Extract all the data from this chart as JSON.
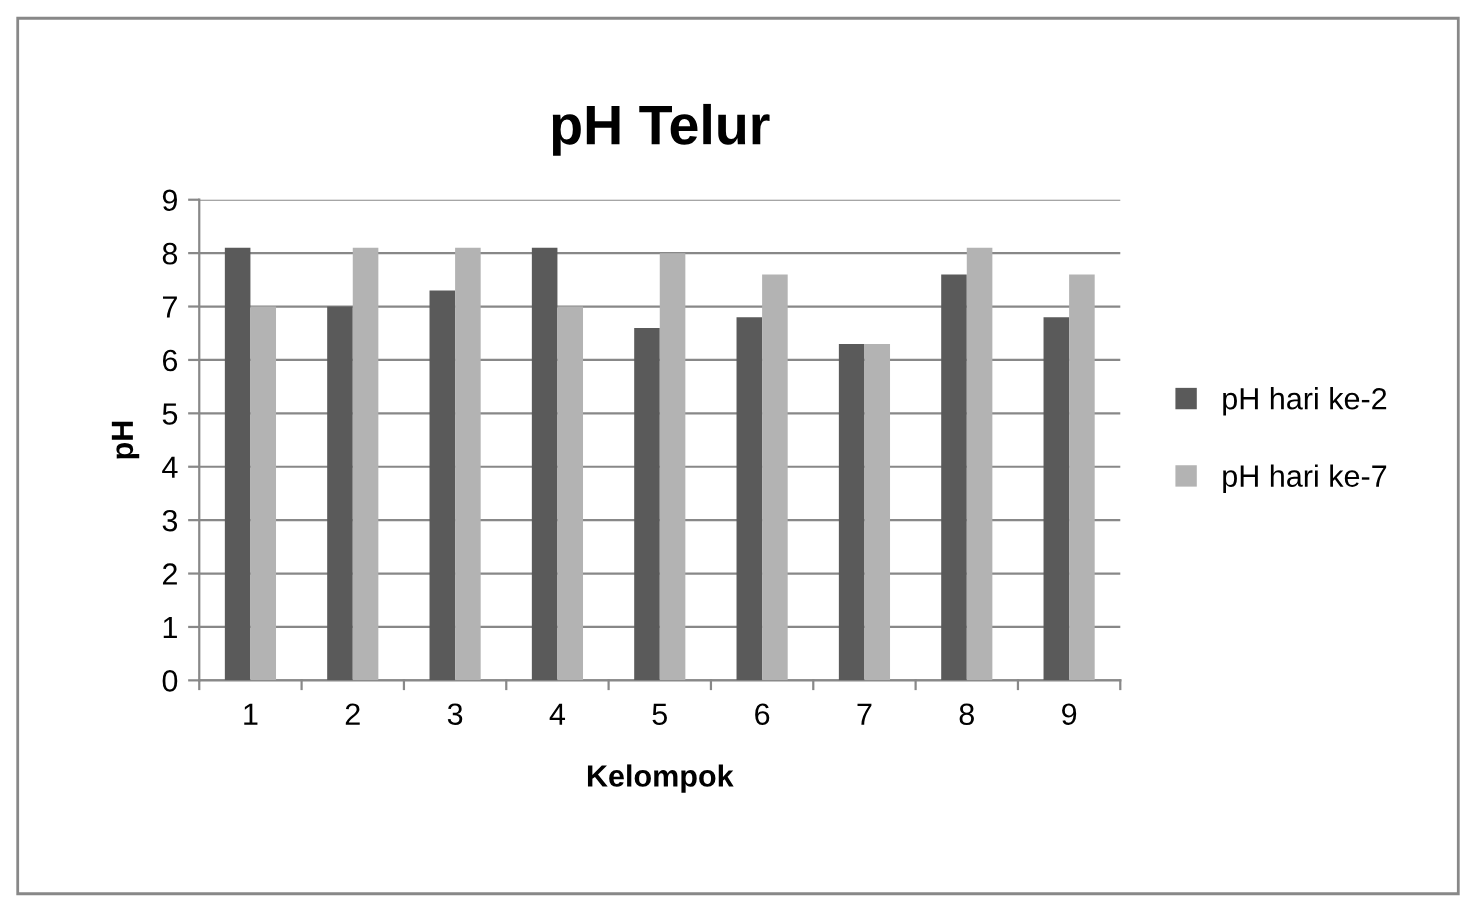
{
  "chart_data": {
    "type": "bar",
    "title": "pH Telur",
    "xlabel": "Kelompok",
    "ylabel": "pH",
    "categories": [
      "1",
      "2",
      "3",
      "4",
      "5",
      "6",
      "7",
      "8",
      "9"
    ],
    "series": [
      {
        "name": "pH hari ke-2",
        "color": "#5a5a5a",
        "values": [
          8.1,
          7.0,
          7.3,
          8.1,
          6.6,
          6.8,
          6.3,
          7.6,
          6.8
        ]
      },
      {
        "name": "pH hari ke-7",
        "color": "#b3b3b3",
        "values": [
          7.0,
          8.1,
          8.1,
          7.0,
          8.0,
          7.6,
          6.3,
          8.1,
          7.6
        ]
      }
    ],
    "ylim": [
      0,
      9
    ],
    "yticks": [
      0,
      1,
      2,
      3,
      4,
      5,
      6,
      7,
      8,
      9
    ],
    "grid": "y",
    "legend": "right"
  }
}
